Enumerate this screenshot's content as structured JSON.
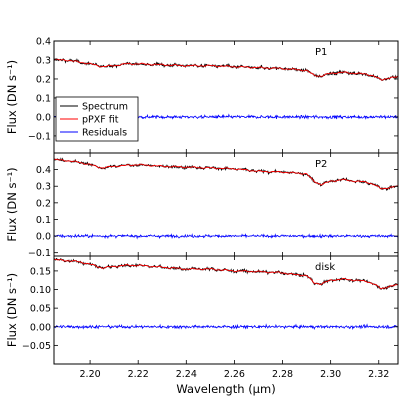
{
  "chart_data": {
    "type": "line",
    "xlabel": "Wavelength (μm)",
    "xlim": [
      2.185,
      2.328
    ],
    "xticks": [
      2.2,
      2.22,
      2.24,
      2.26,
      2.28,
      2.3,
      2.32
    ],
    "xtick_labels": [
      "2.20",
      "2.22",
      "2.24",
      "2.26",
      "2.28",
      "2.30",
      "2.32"
    ],
    "legend": {
      "placement": "left",
      "entries": [
        {
          "label": "Spectrum",
          "color": "#000000"
        },
        {
          "label": "pPXF fit",
          "color": "#ff0000"
        },
        {
          "label": "Residuals",
          "color": "#0000ff"
        }
      ]
    },
    "panels": [
      {
        "label": "P1",
        "ylabel": "Flux (DN s⁻¹)",
        "ylim": [
          -0.19,
          0.4
        ],
        "yticks": [
          -0.1,
          0.0,
          0.1,
          0.2,
          0.3,
          0.4
        ],
        "ytick_labels": [
          "−0.1",
          "0.0",
          "0.1",
          "0.2",
          "0.3",
          "0.4"
        ],
        "spectrum_anchors": {
          "x": [
            2.185,
            2.19,
            2.195,
            2.2,
            2.205,
            2.21,
            2.215,
            2.22,
            2.23,
            2.24,
            2.25,
            2.26,
            2.27,
            2.28,
            2.285,
            2.29,
            2.293,
            2.296,
            2.3,
            2.305,
            2.31,
            2.315,
            2.318,
            2.321,
            2.324,
            2.328
          ],
          "y": [
            0.3,
            0.3,
            0.29,
            0.28,
            0.265,
            0.27,
            0.28,
            0.28,
            0.275,
            0.27,
            0.27,
            0.265,
            0.26,
            0.255,
            0.25,
            0.245,
            0.22,
            0.215,
            0.23,
            0.235,
            0.23,
            0.225,
            0.215,
            0.195,
            0.205,
            0.21
          ]
        },
        "residual_level": 0.0
      },
      {
        "label": "P2",
        "ylabel": "Flux (DN s⁻¹)",
        "ylim": [
          -0.12,
          0.5
        ],
        "yticks": [
          -0.1,
          0.0,
          0.1,
          0.2,
          0.3,
          0.4
        ],
        "ytick_labels": [
          "−0.1",
          "0.0",
          "0.1",
          "0.2",
          "0.3",
          "0.4"
        ],
        "spectrum_anchors": {
          "x": [
            2.185,
            2.19,
            2.195,
            2.2,
            2.205,
            2.21,
            2.215,
            2.22,
            2.23,
            2.24,
            2.25,
            2.26,
            2.27,
            2.28,
            2.285,
            2.29,
            2.293,
            2.296,
            2.3,
            2.305,
            2.31,
            2.315,
            2.318,
            2.321,
            2.324,
            2.328
          ],
          "y": [
            0.46,
            0.455,
            0.445,
            0.43,
            0.41,
            0.42,
            0.425,
            0.43,
            0.42,
            0.415,
            0.41,
            0.405,
            0.39,
            0.385,
            0.38,
            0.375,
            0.33,
            0.31,
            0.33,
            0.34,
            0.33,
            0.325,
            0.31,
            0.285,
            0.29,
            0.3
          ]
        },
        "residual_level": 0.0
      },
      {
        "label": "disk",
        "ylabel": "Flux (DN s⁻¹)",
        "ylim": [
          -0.1,
          0.19
        ],
        "yticks": [
          -0.05,
          0.0,
          0.05,
          0.1,
          0.15
        ],
        "ytick_labels": [
          "−0.05",
          "0.00",
          "0.05",
          "0.10",
          "0.15"
        ],
        "spectrum_anchors": {
          "x": [
            2.185,
            2.19,
            2.195,
            2.2,
            2.205,
            2.21,
            2.215,
            2.22,
            2.23,
            2.24,
            2.25,
            2.26,
            2.27,
            2.28,
            2.285,
            2.29,
            2.293,
            2.296,
            2.3,
            2.305,
            2.31,
            2.315,
            2.318,
            2.321,
            2.324,
            2.328
          ],
          "y": [
            0.18,
            0.178,
            0.175,
            0.168,
            0.158,
            0.162,
            0.165,
            0.165,
            0.16,
            0.155,
            0.155,
            0.15,
            0.148,
            0.145,
            0.14,
            0.138,
            0.118,
            0.115,
            0.125,
            0.128,
            0.125,
            0.122,
            0.115,
            0.102,
            0.108,
            0.112
          ]
        },
        "residual_level": 0.0
      }
    ]
  }
}
